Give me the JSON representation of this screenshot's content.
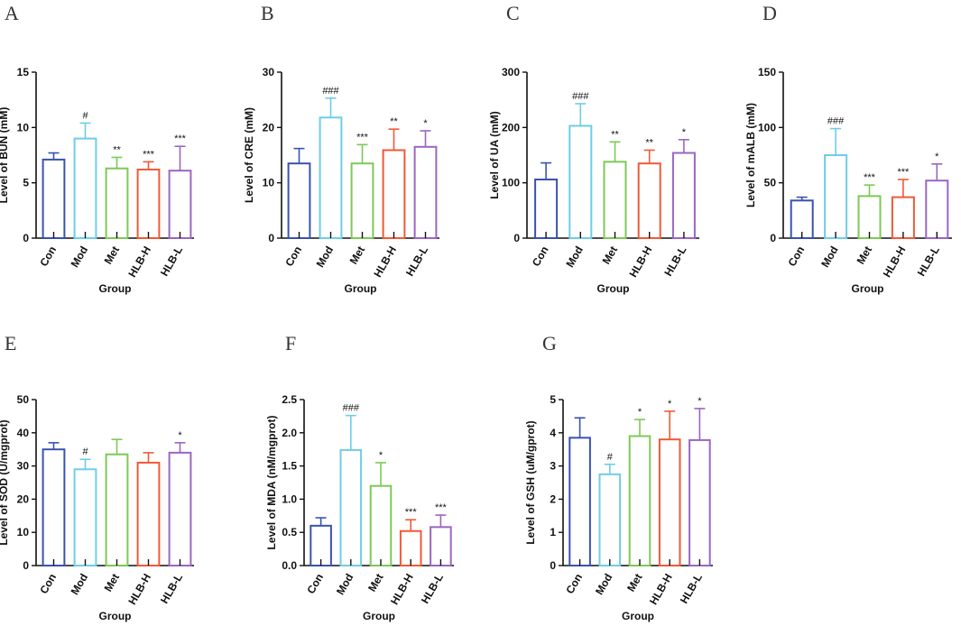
{
  "figure": {
    "colors": {
      "Con": "#3a52b0",
      "Mod": "#6ecde6",
      "Met": "#7dc956",
      "HLB-H": "#ef5a36",
      "HLB-L": "#9a66c2"
    }
  },
  "chart_data": [
    {
      "panel": "A",
      "type": "bar",
      "title": "",
      "categories": [
        "Con",
        "Mod",
        "Met",
        "HLB-H",
        "HLB-L"
      ],
      "values": [
        7.1,
        9.0,
        6.3,
        6.2,
        6.1
      ],
      "errors": [
        0.6,
        1.4,
        1.0,
        0.7,
        2.2
      ],
      "significance": [
        "",
        "#",
        "**",
        "***",
        "***"
      ],
      "xlabel": "Group",
      "ylabel": "Level of BUN (mM)",
      "ylim": [
        0,
        15
      ],
      "yticks": [
        0,
        5,
        10,
        15
      ],
      "ytick_labels": [
        "0",
        "5",
        "10",
        "15"
      ]
    },
    {
      "panel": "B",
      "type": "bar",
      "title": "",
      "categories": [
        "Con",
        "Mod",
        "Met",
        "HLB-H",
        "HLB-L"
      ],
      "values": [
        13.5,
        21.8,
        13.5,
        15.9,
        16.5
      ],
      "errors": [
        2.7,
        3.5,
        3.4,
        3.8,
        2.9
      ],
      "significance": [
        "",
        "###",
        "***",
        "**",
        "*"
      ],
      "xlabel": "Group",
      "ylabel": "Level of CRE (mM)",
      "ylim": [
        0,
        30
      ],
      "yticks": [
        0,
        10,
        20,
        30
      ],
      "ytick_labels": [
        "0",
        "10",
        "20",
        "30"
      ]
    },
    {
      "panel": "C",
      "type": "bar",
      "title": "",
      "categories": [
        "Con",
        "Mod",
        "Met",
        "HLB-H",
        "HLB-L"
      ],
      "values": [
        106,
        203,
        138,
        135,
        154
      ],
      "errors": [
        30,
        40,
        36,
        24,
        24
      ],
      "significance": [
        "",
        "###",
        "**",
        "**",
        "*"
      ],
      "xlabel": "Group",
      "ylabel": "Level of UA (mM)",
      "ylim": [
        0,
        300
      ],
      "yticks": [
        0,
        100,
        200,
        300
      ],
      "ytick_labels": [
        "0",
        "100",
        "200",
        "300"
      ]
    },
    {
      "panel": "D",
      "type": "bar",
      "title": "",
      "categories": [
        "Con",
        "Mod",
        "Met",
        "HLB-H",
        "HLB-L"
      ],
      "values": [
        34,
        75,
        38,
        37,
        52
      ],
      "errors": [
        3,
        24,
        10,
        16,
        15
      ],
      "significance": [
        "",
        "###",
        "***",
        "***",
        "*"
      ],
      "xlabel": "Group",
      "ylabel": "Level of mALB (mM)",
      "ylim": [
        0,
        150
      ],
      "yticks": [
        0,
        50,
        100,
        150
      ],
      "ytick_labels": [
        "0",
        "50",
        "100",
        "150"
      ]
    },
    {
      "panel": "E",
      "type": "bar",
      "title": "",
      "categories": [
        "Con",
        "Mod",
        "Met",
        "HLB-H",
        "HLB-L"
      ],
      "values": [
        35,
        29,
        33.5,
        31,
        34
      ],
      "errors": [
        2,
        3,
        4.5,
        3,
        3
      ],
      "significance": [
        "",
        "#",
        "",
        "",
        "*"
      ],
      "xlabel": "Group",
      "ylabel": "Level of SOD (U/mgprot)",
      "ylim": [
        0,
        50
      ],
      "yticks": [
        0,
        10,
        20,
        30,
        40,
        50
      ],
      "ytick_labels": [
        "0",
        "10",
        "20",
        "30",
        "40",
        "50"
      ]
    },
    {
      "panel": "F",
      "type": "bar",
      "title": "",
      "categories": [
        "Con",
        "Mod",
        "Met",
        "HLB-H",
        "HLB-L"
      ],
      "values": [
        0.6,
        1.74,
        1.2,
        0.52,
        0.58
      ],
      "errors": [
        0.12,
        0.52,
        0.35,
        0.17,
        0.18
      ],
      "significance": [
        "",
        "###",
        "*",
        "***",
        "***"
      ],
      "xlabel": "Group",
      "ylabel": "Level of MDA (nM/mgprot)",
      "ylim": [
        0,
        2.5
      ],
      "yticks": [
        0,
        0.5,
        1.0,
        1.5,
        2.0,
        2.5
      ],
      "ytick_labels": [
        "0.0",
        "0.5",
        "1.0",
        "1.5",
        "2.0",
        "2.5"
      ]
    },
    {
      "panel": "G",
      "type": "bar",
      "title": "",
      "categories": [
        "Con",
        "Mod",
        "Met",
        "HLB-H",
        "HLB-L"
      ],
      "values": [
        3.85,
        2.75,
        3.9,
        3.8,
        3.78
      ],
      "errors": [
        0.6,
        0.3,
        0.5,
        0.85,
        0.95
      ],
      "significance": [
        "",
        "#",
        "*",
        "*",
        "*"
      ],
      "xlabel": "Group",
      "ylabel": "Level of GSH (uM/gprot)",
      "ylim": [
        0,
        5
      ],
      "yticks": [
        0,
        1,
        2,
        3,
        4,
        5
      ],
      "ytick_labels": [
        "0",
        "1",
        "2",
        "3",
        "4",
        "5"
      ]
    }
  ]
}
